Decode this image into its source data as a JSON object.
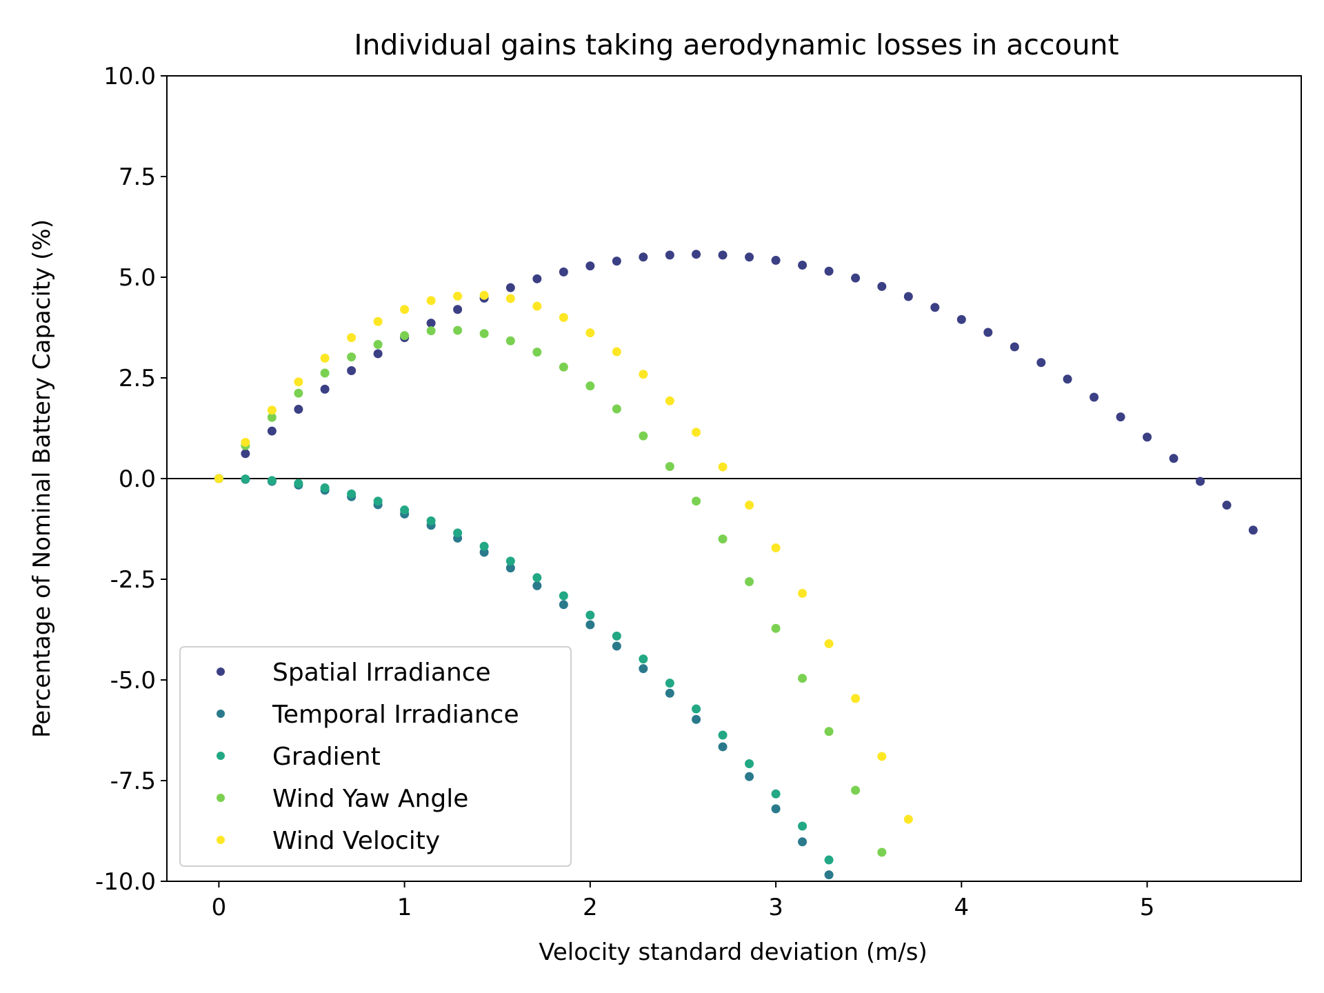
{
  "chart_data": {
    "type": "scatter",
    "title": "Individual gains taking aerodynamic losses in account",
    "xlabel": "Velocity standard deviation (m/s)",
    "ylabel": "Percentage of Nominal Battery Capacity (%)",
    "xlim": [
      -0.28,
      5.83
    ],
    "ylim": [
      -10,
      10
    ],
    "x_ticks": [
      0,
      1,
      2,
      3,
      4,
      5
    ],
    "x_tick_labels": [
      "0",
      "1",
      "2",
      "3",
      "4",
      "5"
    ],
    "y_ticks": [
      10,
      7.5,
      5,
      2.5,
      0,
      -2.5,
      -5,
      -7.5,
      -10
    ],
    "y_tick_labels": [
      "10.0",
      "7.5",
      "5.0",
      "2.5",
      "0.0",
      "-2.5",
      "-5.0",
      "-7.5",
      "-10.0"
    ],
    "grid": false,
    "zero_line": true,
    "legend_position": "lower-left",
    "series": [
      {
        "name": "Spatial Irradiance",
        "color": "#3b3f84",
        "x": [
          0.0,
          0.143,
          0.286,
          0.429,
          0.571,
          0.714,
          0.857,
          1.0,
          1.143,
          1.286,
          1.429,
          1.571,
          1.714,
          1.857,
          2.0,
          2.143,
          2.286,
          2.429,
          2.571,
          2.714,
          2.857,
          3.0,
          3.143,
          3.286,
          3.429,
          3.571,
          3.714,
          3.857,
          4.0,
          4.143,
          4.286,
          4.429,
          4.571,
          4.714,
          4.857,
          5.0,
          5.143,
          5.286,
          5.429,
          5.571
        ],
        "y": [
          0.0,
          0.62,
          1.18,
          1.72,
          2.22,
          2.68,
          3.1,
          3.5,
          3.86,
          4.2,
          4.48,
          4.74,
          4.96,
          5.13,
          5.28,
          5.4,
          5.5,
          5.55,
          5.57,
          5.55,
          5.5,
          5.42,
          5.3,
          5.15,
          4.98,
          4.77,
          4.52,
          4.25,
          3.95,
          3.63,
          3.27,
          2.88,
          2.47,
          2.02,
          1.53,
          1.03,
          0.5,
          -0.07,
          -0.66,
          -1.28
        ]
      },
      {
        "name": "Temporal Irradiance",
        "color": "#2a7a8c",
        "x": [
          0.0,
          0.143,
          0.286,
          0.429,
          0.571,
          0.714,
          0.857,
          1.0,
          1.143,
          1.286,
          1.429,
          1.571,
          1.714,
          1.857,
          2.0,
          2.143,
          2.286,
          2.429,
          2.571,
          2.714,
          2.857,
          3.0,
          3.143,
          3.286
        ],
        "y": [
          0.0,
          -0.02,
          -0.07,
          -0.16,
          -0.29,
          -0.45,
          -0.65,
          -0.88,
          -1.16,
          -1.48,
          -1.83,
          -2.22,
          -2.66,
          -3.13,
          -3.63,
          -4.16,
          -4.72,
          -5.33,
          -5.98,
          -6.66,
          -7.4,
          -8.2,
          -9.02,
          -9.84
        ]
      },
      {
        "name": "Gradient",
        "color": "#22a884",
        "x": [
          0.0,
          0.143,
          0.286,
          0.429,
          0.571,
          0.714,
          0.857,
          1.0,
          1.143,
          1.286,
          1.429,
          1.571,
          1.714,
          1.857,
          2.0,
          2.143,
          2.286,
          2.429,
          2.571,
          2.714,
          2.857,
          3.0,
          3.143,
          3.286
        ],
        "y": [
          0.0,
          -0.01,
          -0.05,
          -0.12,
          -0.23,
          -0.38,
          -0.56,
          -0.78,
          -1.05,
          -1.35,
          -1.68,
          -2.05,
          -2.46,
          -2.91,
          -3.39,
          -3.91,
          -4.48,
          -5.08,
          -5.72,
          -6.37,
          -7.08,
          -7.83,
          -8.63,
          -9.47
        ]
      },
      {
        "name": "Wind Yaw Angle",
        "color": "#7ad151",
        "x": [
          0.0,
          0.143,
          0.286,
          0.429,
          0.571,
          0.714,
          0.857,
          1.0,
          1.143,
          1.286,
          1.429,
          1.571,
          1.714,
          1.857,
          2.0,
          2.143,
          2.286,
          2.429,
          2.571,
          2.714,
          2.857,
          3.0,
          3.143,
          3.286,
          3.429,
          3.571
        ],
        "y": [
          0.0,
          0.82,
          1.52,
          2.12,
          2.62,
          3.02,
          3.33,
          3.55,
          3.67,
          3.68,
          3.6,
          3.42,
          3.14,
          2.77,
          2.3,
          1.73,
          1.06,
          0.3,
          -0.56,
          -1.5,
          -2.56,
          -3.72,
          -4.96,
          -6.28,
          -7.74,
          -9.28
        ]
      },
      {
        "name": "Wind Velocity",
        "color": "#fde725",
        "x": [
          0.0,
          0.143,
          0.286,
          0.429,
          0.571,
          0.714,
          0.857,
          1.0,
          1.143,
          1.286,
          1.429,
          1.571,
          1.714,
          1.857,
          2.0,
          2.143,
          2.286,
          2.429,
          2.571,
          2.714,
          2.857,
          3.0,
          3.143,
          3.286,
          3.429,
          3.571,
          3.714
        ],
        "y": [
          0.0,
          0.9,
          1.7,
          2.4,
          2.99,
          3.5,
          3.9,
          4.2,
          4.42,
          4.53,
          4.55,
          4.47,
          4.28,
          4.0,
          3.62,
          3.15,
          2.59,
          1.93,
          1.15,
          0.29,
          -0.66,
          -1.72,
          -2.85,
          -4.1,
          -5.46,
          -6.9,
          -8.46
        ]
      }
    ]
  }
}
